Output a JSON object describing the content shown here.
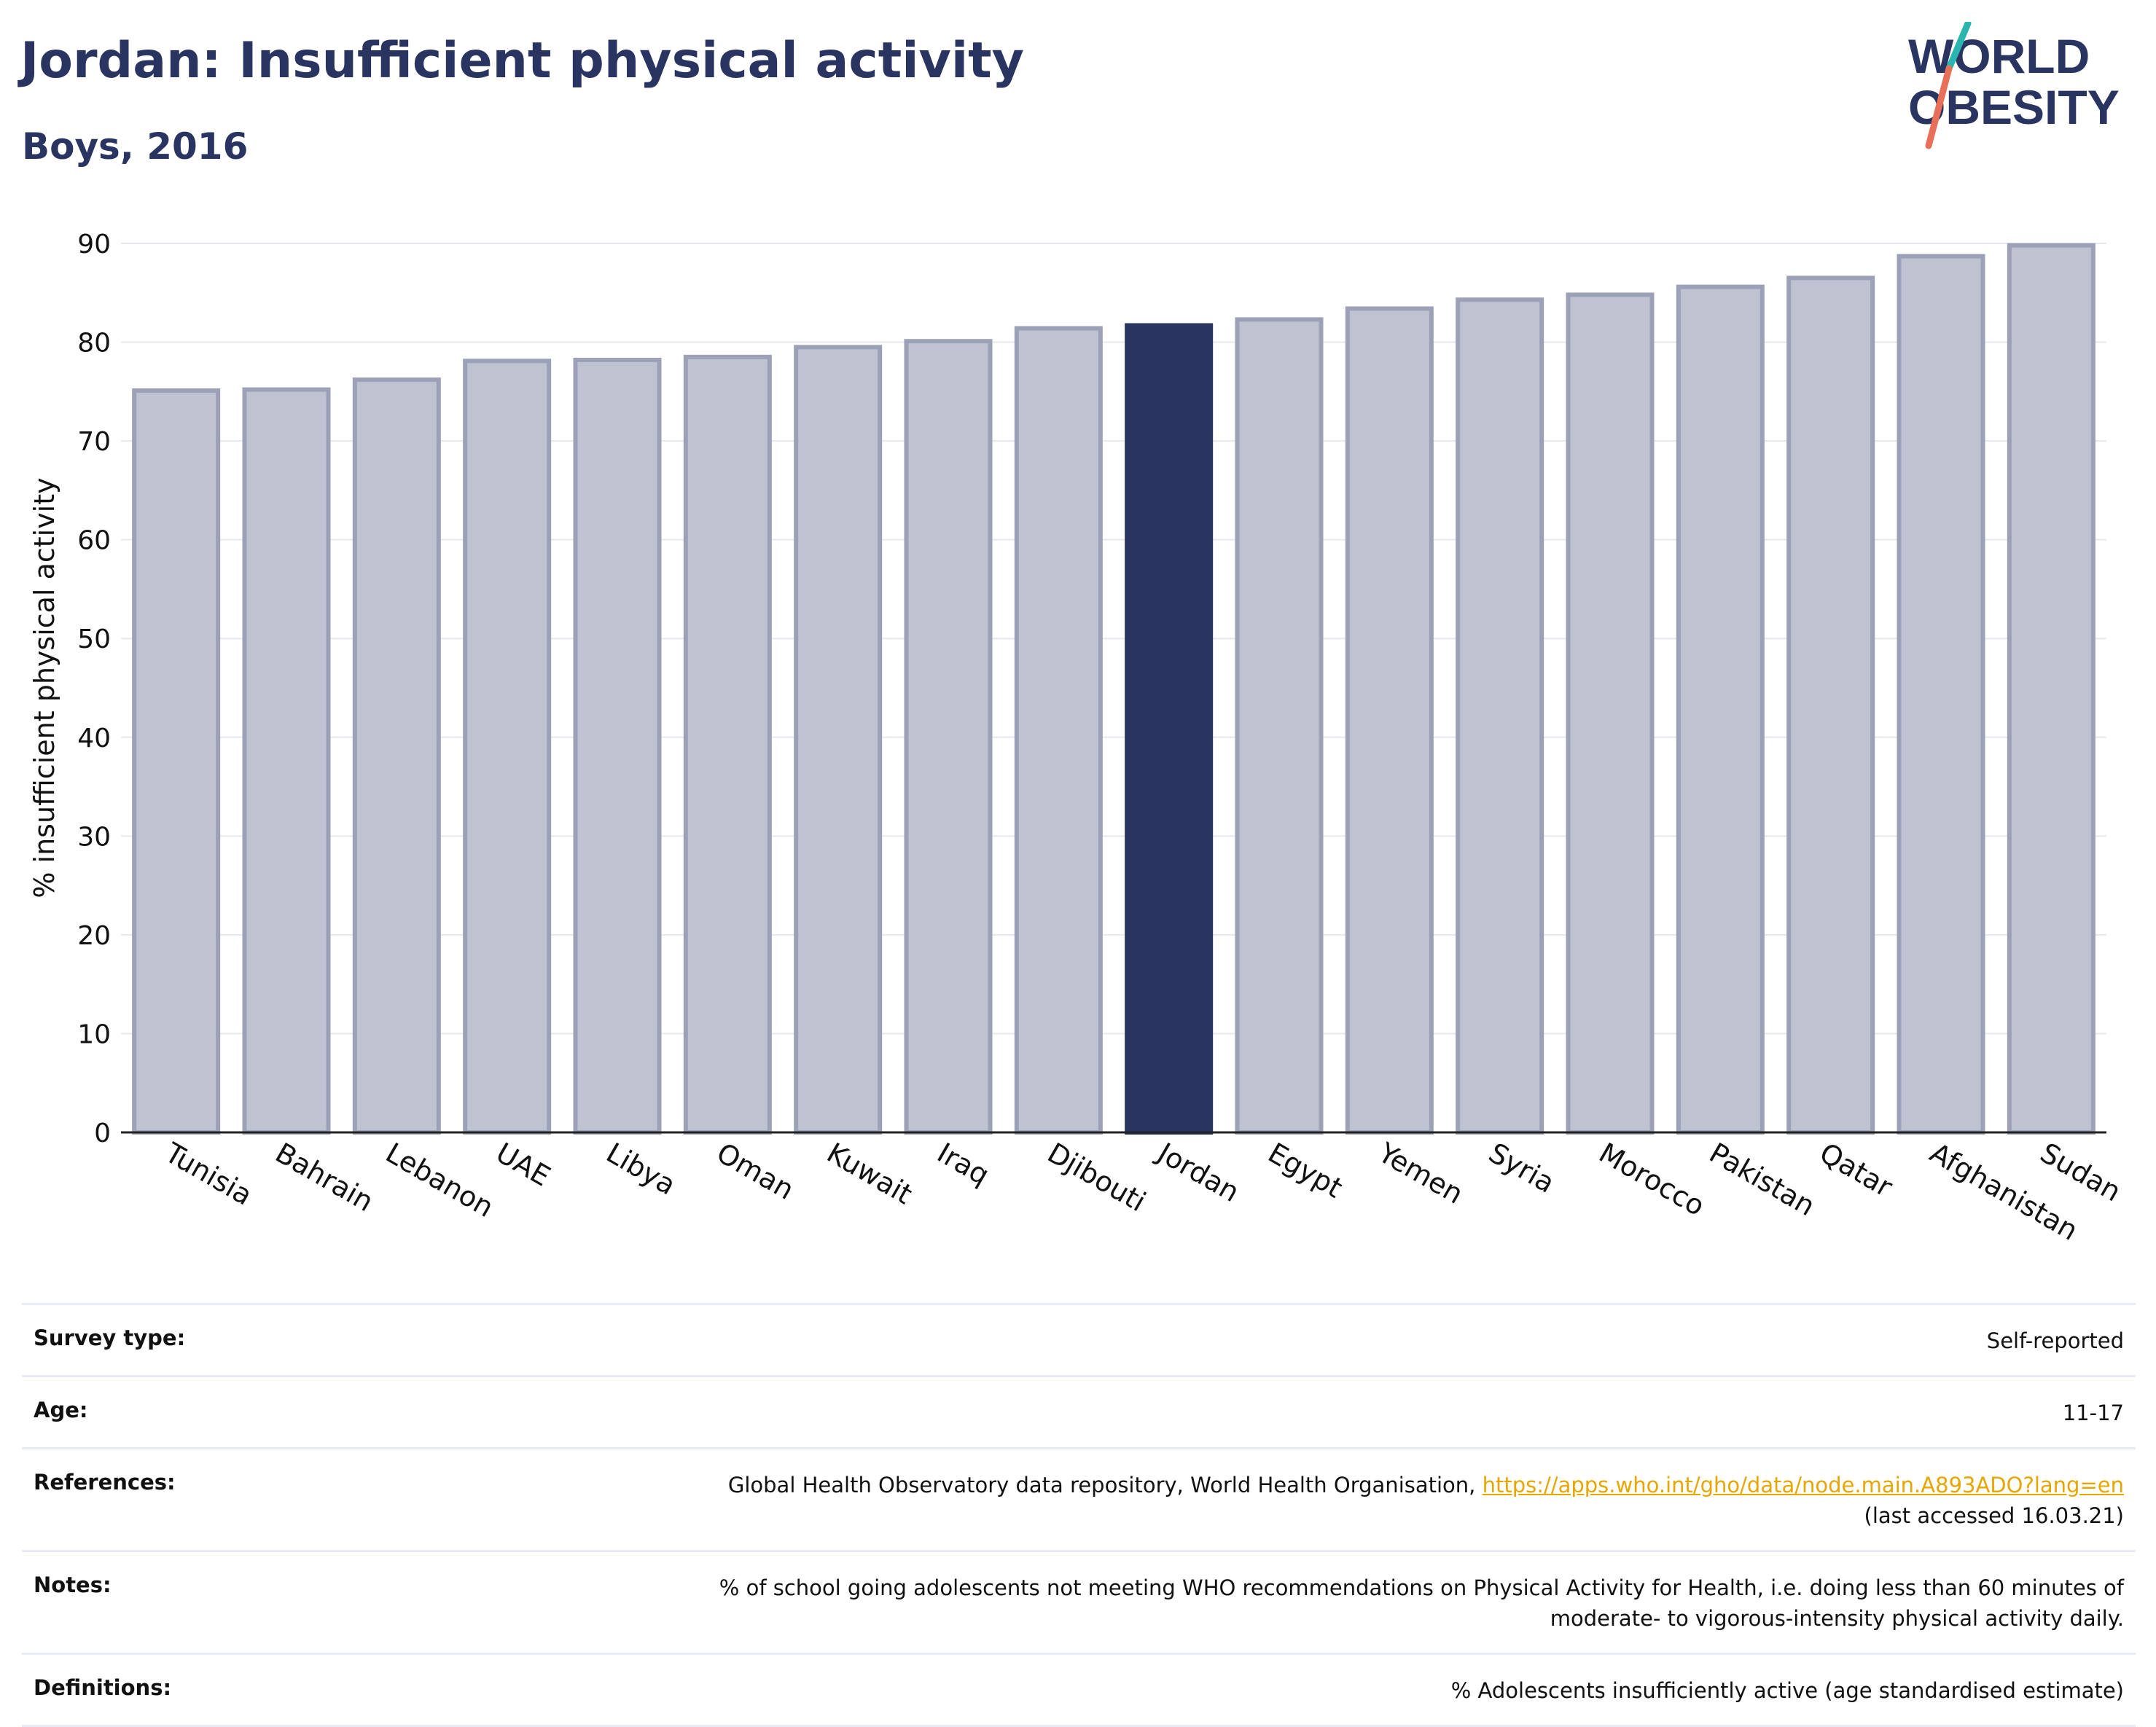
{
  "header": {
    "title": "Jordan: Insufficient physical activity",
    "subtitle": "Boys, 2016"
  },
  "logo": {
    "line1": "WORLD",
    "line2": "OBESITY",
    "icon": "world-obesity-logo"
  },
  "colors": {
    "highlight": "#2a3460",
    "bar": "#bfc2d0",
    "bar_edge": "#9ca1b8",
    "accent_teal": "#2bb5b0",
    "accent_coral": "#e8705a"
  },
  "chart_data": {
    "type": "bar",
    "categories": [
      "Tunisia",
      "Bahrain",
      "Lebanon",
      "UAE",
      "Libya",
      "Oman",
      "Kuwait",
      "Iraq",
      "Djibouti",
      "Jordan",
      "Egypt",
      "Yemen",
      "Syria",
      "Morocco",
      "Pakistan",
      "Qatar",
      "Afghanistan",
      "Sudan"
    ],
    "values": [
      75.1,
      75.2,
      76.2,
      78.1,
      78.2,
      78.5,
      79.5,
      80.1,
      81.4,
      81.7,
      82.3,
      83.4,
      84.3,
      84.8,
      85.6,
      86.5,
      88.7,
      89.8
    ],
    "highlight": "Jordan",
    "ylabel": "% insufficient physical activity",
    "xlabel": "",
    "ylim": [
      0,
      90
    ],
    "yticks": [
      0,
      10,
      20,
      30,
      40,
      50,
      60,
      70,
      80,
      90
    ],
    "grid": true
  },
  "info": {
    "survey_type_label": "Survey type:",
    "survey_type_value": "Self-reported",
    "age_label": "Age:",
    "age_value": "11-17",
    "references_label": "References:",
    "references_text": "Global Health Observatory data repository, World Health Organisation,",
    "references_link": "https://apps.who.int/gho/data/node.main.A893ADO?lang=en",
    "references_accessed": "(last accessed 16.03.21)",
    "notes_label": "Notes:",
    "notes_line1": "% of school going adolescents not meeting WHO recommendations on Physical Activity for Health, i.e. doing less than 60 minutes of",
    "notes_line2": "moderate- to vigorous-intensity physical activity daily.",
    "definitions_label": "Definitions:",
    "definitions_value": "% Adolescents insufficiently active (age standardised estimate)"
  }
}
